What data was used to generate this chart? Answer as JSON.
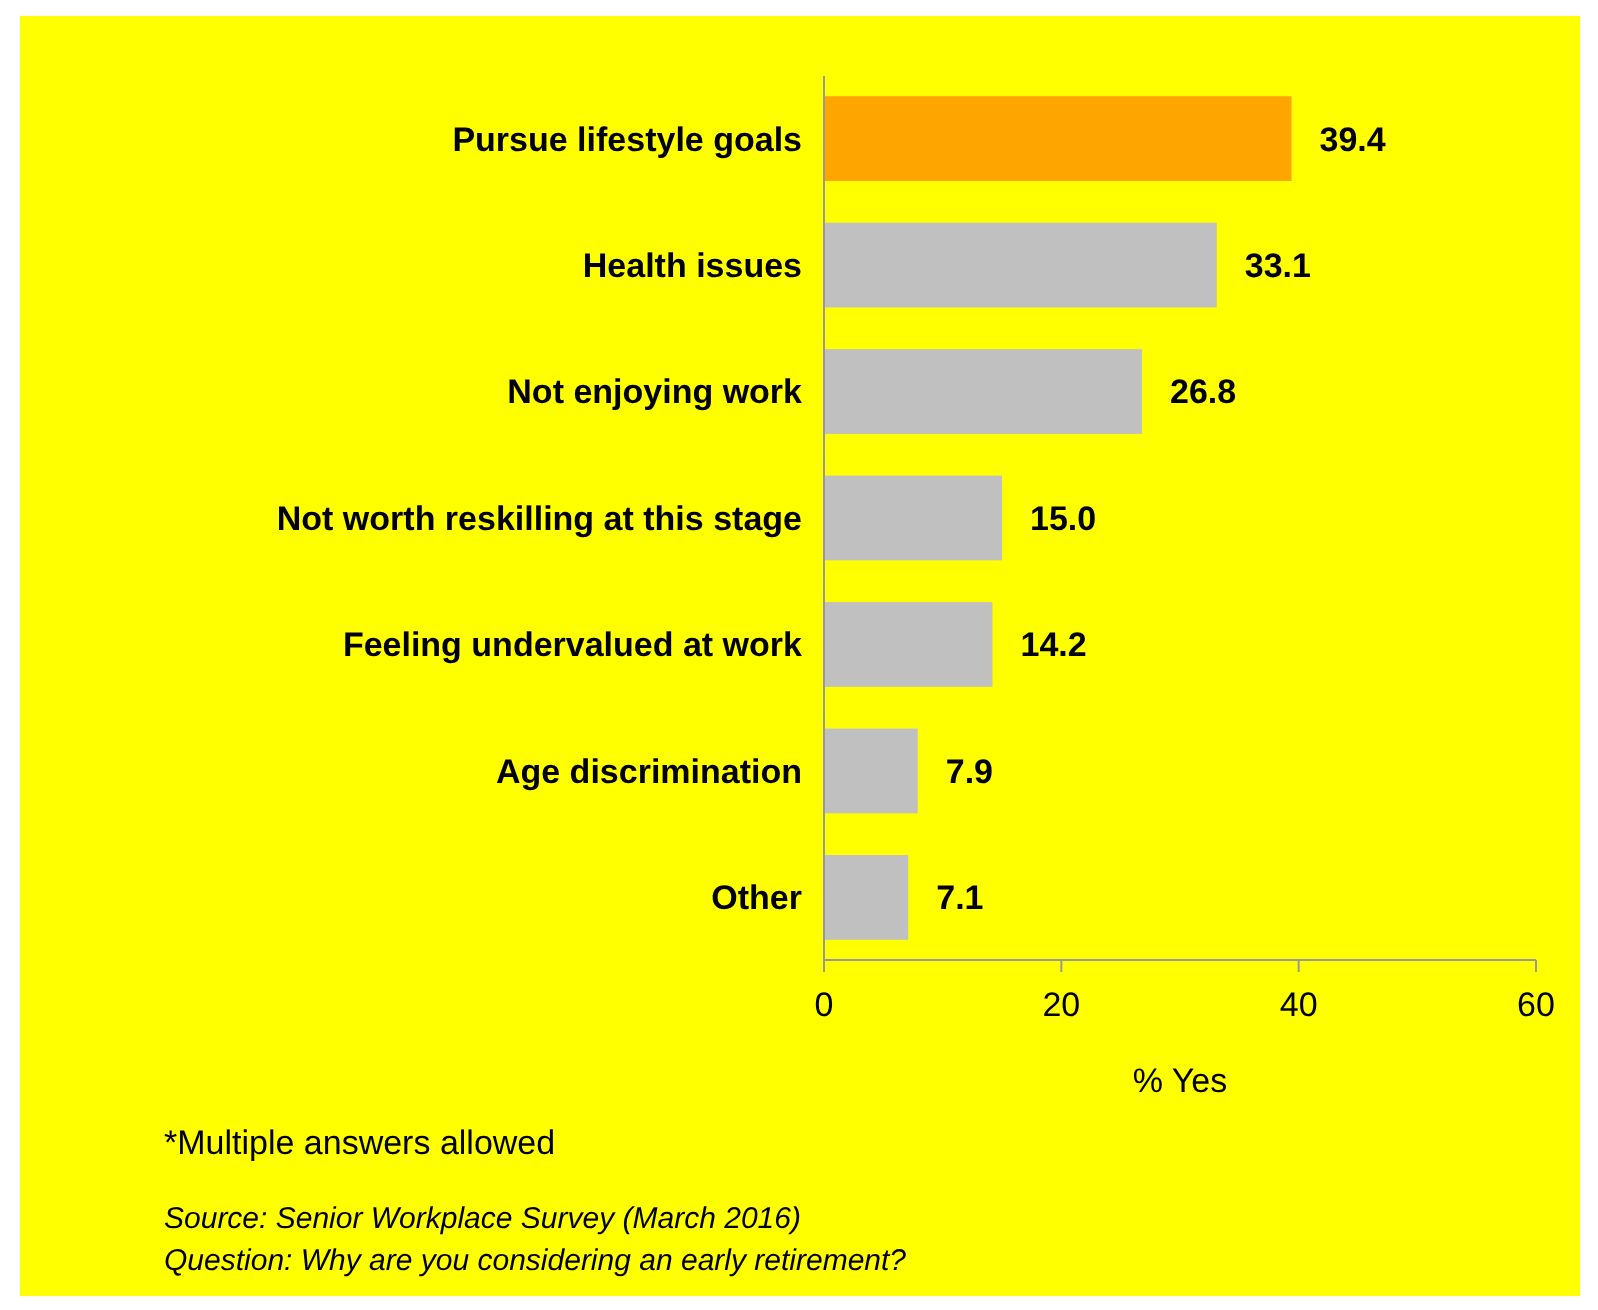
{
  "chart_data": {
    "type": "bar",
    "orientation": "horizontal",
    "categories": [
      "Pursue lifestyle goals",
      "Health issues",
      "Not enjoying work",
      "Not worth reskilling at this stage",
      "Feeling undervalued at work",
      "Age discrimination",
      "Other"
    ],
    "values": [
      39.4,
      33.1,
      26.8,
      15.0,
      14.2,
      7.9,
      7.1
    ],
    "value_labels": [
      "39.4",
      "33.1",
      "26.8",
      "15.0",
      "14.2",
      "7.9",
      "7.1"
    ],
    "colors": [
      "#ffa500",
      "#c0c0c0",
      "#c0c0c0",
      "#c0c0c0",
      "#c0c0c0",
      "#c0c0c0",
      "#c0c0c0"
    ],
    "xlim": [
      0,
      60
    ],
    "xticks": [
      0,
      20,
      40,
      60
    ],
    "xlabel": "% Yes",
    "grid": false,
    "annotations": [
      "*Multiple answers allowed",
      "Source: Senior Workplace Survey (March 2016)",
      "Question: Why are you considering an early retirement?"
    ]
  }
}
